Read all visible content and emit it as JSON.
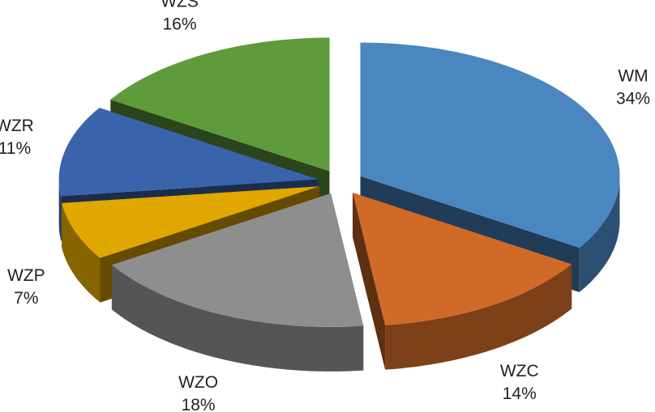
{
  "chart_data": {
    "type": "pie3d",
    "categories": [
      "WM",
      "WZC",
      "WZO",
      "WZP",
      "WZR",
      "WZS"
    ],
    "values": [
      34,
      14,
      18,
      7,
      11,
      16
    ],
    "value_labels": [
      "34%",
      "14%",
      "18%",
      "7%",
      "11%",
      "16%"
    ],
    "colors": [
      "#4a86c0",
      "#d06a28",
      "#8e8e8e",
      "#e0a700",
      "#3a63ac",
      "#5f9a3b"
    ]
  }
}
